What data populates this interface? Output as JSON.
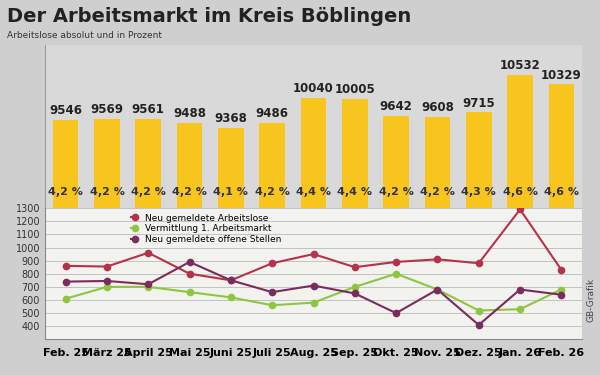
{
  "chart_data": [
    {
      "type": "bar",
      "title": "Der Arbeitsmarkt im Kreis Böblingen",
      "subtitle": "Arbeitslose absolut und in Prozent",
      "categories": [
        "Feb. 25",
        "März 25",
        "April 25",
        "Mai 25",
        "Juni 25",
        "Juli 25",
        "Aug. 25",
        "Sep. 25",
        "Okt. 25",
        "Nov. 25",
        "Dez. 25",
        "Jan. 26",
        "Feb. 26"
      ],
      "values": [
        9546,
        9569,
        9561,
        9488,
        9368,
        9486,
        10040,
        10005,
        9642,
        9608,
        9715,
        10532,
        10329
      ],
      "values_percent": [
        4.2,
        4.2,
        4.2,
        4.2,
        4.1,
        4.2,
        4.4,
        4.4,
        4.2,
        4.2,
        4.3,
        4.6,
        4.6
      ],
      "value_labels_percent": [
        "4,2 %",
        "4,2 %",
        "4,2 %",
        "4,2 %",
        "4,1 %",
        "4,2 %",
        "4,4 %",
        "4,4 %",
        "4,2 %",
        "4,2 %",
        "4,3 %",
        "4,6 %",
        "4,6 %"
      ],
      "color": "#f7c51e",
      "ylim": [
        7600,
        11200
      ],
      "data_labels": true,
      "tick_labels": false
    },
    {
      "type": "line",
      "categories": [
        "Feb. 25",
        "März 25",
        "April 25",
        "Mai 25",
        "Juni 25",
        "Juli 25",
        "Aug. 25",
        "Sep. 25",
        "Okt. 25",
        "Nov. 25",
        "Dez. 25",
        "Jan. 26",
        "Feb. 26"
      ],
      "series": [
        {
          "name": "Neu gemeldete Arbeitslose",
          "color": "#b5334a",
          "values": [
            860,
            855,
            960,
            800,
            750,
            880,
            950,
            850,
            890,
            910,
            880,
            1290,
            830
          ]
        },
        {
          "name": "Vermittlung 1. Arbeitsmarkt",
          "color": "#8dc63f",
          "values": [
            610,
            700,
            700,
            660,
            620,
            560,
            580,
            700,
            800,
            680,
            520,
            530,
            680
          ]
        },
        {
          "name": "Neu gemeldete offene Stellen",
          "color": "#7b2b5e",
          "values": [
            740,
            745,
            720,
            890,
            750,
            660,
            710,
            650,
            500,
            680,
            410,
            680,
            640
          ]
        }
      ],
      "marker": "o",
      "ylim": [
        300,
        1300
      ],
      "yticks": [
        400,
        500,
        600,
        700,
        800,
        900,
        1000,
        1100,
        1200,
        1300
      ],
      "grid": true,
      "legend": "upper left",
      "source": "GB-Grafik"
    }
  ]
}
